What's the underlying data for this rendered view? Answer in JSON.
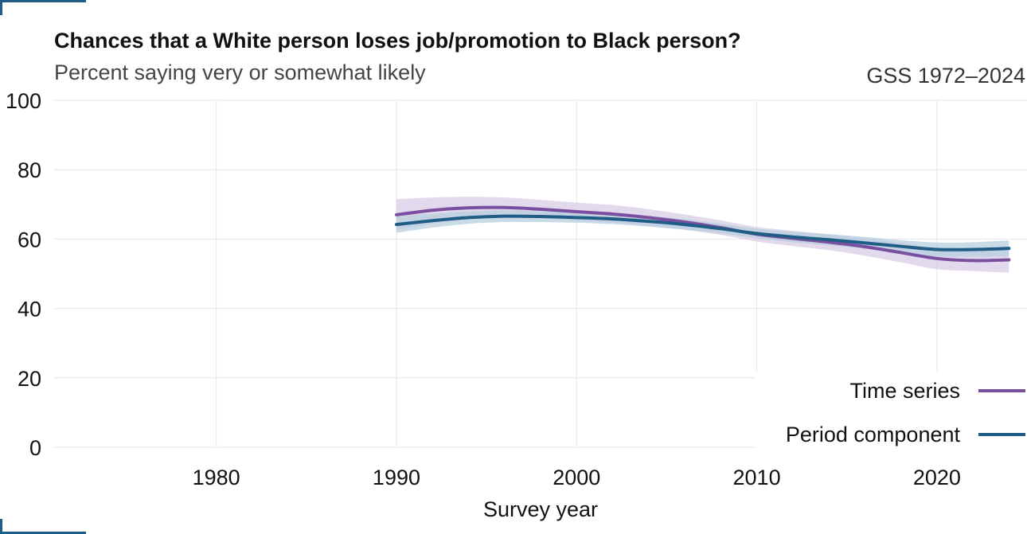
{
  "chart_data": {
    "type": "line",
    "title": "Chances that a White person loses job/promotion to Black person?",
    "subtitle": "Percent saying very or somewhat likely",
    "source": "GSS 1972–2024",
    "xlabel": "Survey year",
    "ylabel": "",
    "xlim": [
      1971,
      2025
    ],
    "ylim": [
      0,
      100
    ],
    "x_ticks": [
      1980,
      1990,
      2000,
      2010,
      2020
    ],
    "y_ticks": [
      0,
      20,
      40,
      60,
      80,
      100
    ],
    "grid": true,
    "legend_position": "bottom-right",
    "series": [
      {
        "name": "Time series",
        "color": "#7b4fa0",
        "band_color": "#d9cce6",
        "x": [
          1990,
          1992,
          1994,
          1996,
          1998,
          2000,
          2002,
          2004,
          2006,
          2008,
          2010,
          2012,
          2014,
          2016,
          2018,
          2020,
          2022,
          2024
        ],
        "y": [
          67.0,
          68.3,
          69.0,
          69.1,
          68.6,
          67.9,
          67.2,
          66.2,
          64.9,
          63.3,
          61.4,
          60.2,
          59.1,
          57.8,
          56.1,
          54.4,
          53.8,
          54.0
        ],
        "lower": [
          62.5,
          64.5,
          65.8,
          66.2,
          65.9,
          65.3,
          64.7,
          63.8,
          62.7,
          61.2,
          59.3,
          58.0,
          56.8,
          55.2,
          53.3,
          51.3,
          50.8,
          50.3
        ],
        "upper": [
          71.5,
          72.0,
          72.2,
          72.0,
          71.3,
          70.5,
          69.8,
          68.6,
          67.1,
          65.4,
          63.5,
          62.4,
          61.4,
          60.4,
          58.9,
          57.5,
          56.9,
          57.7
        ]
      },
      {
        "name": "Period component",
        "color": "#1f5d86",
        "band_color": "#b7cfdf",
        "x": [
          1990,
          1992,
          1994,
          1996,
          1998,
          2000,
          2002,
          2004,
          2006,
          2008,
          2010,
          2012,
          2014,
          2016,
          2018,
          2020,
          2022,
          2024
        ],
        "y": [
          64.2,
          65.3,
          66.2,
          66.6,
          66.5,
          66.2,
          65.8,
          65.1,
          64.2,
          63.0,
          61.6,
          60.6,
          59.8,
          58.9,
          57.9,
          57.0,
          57.0,
          57.3
        ],
        "lower": [
          61.8,
          63.3,
          64.4,
          64.9,
          64.9,
          64.7,
          64.3,
          63.6,
          62.7,
          61.6,
          60.2,
          59.1,
          58.2,
          57.2,
          56.1,
          55.0,
          54.9,
          55.0
        ],
        "upper": [
          66.6,
          67.3,
          68.0,
          68.3,
          68.1,
          67.7,
          67.3,
          66.6,
          65.7,
          64.4,
          63.0,
          62.1,
          61.4,
          60.6,
          59.7,
          59.0,
          59.1,
          59.6
        ]
      }
    ]
  }
}
